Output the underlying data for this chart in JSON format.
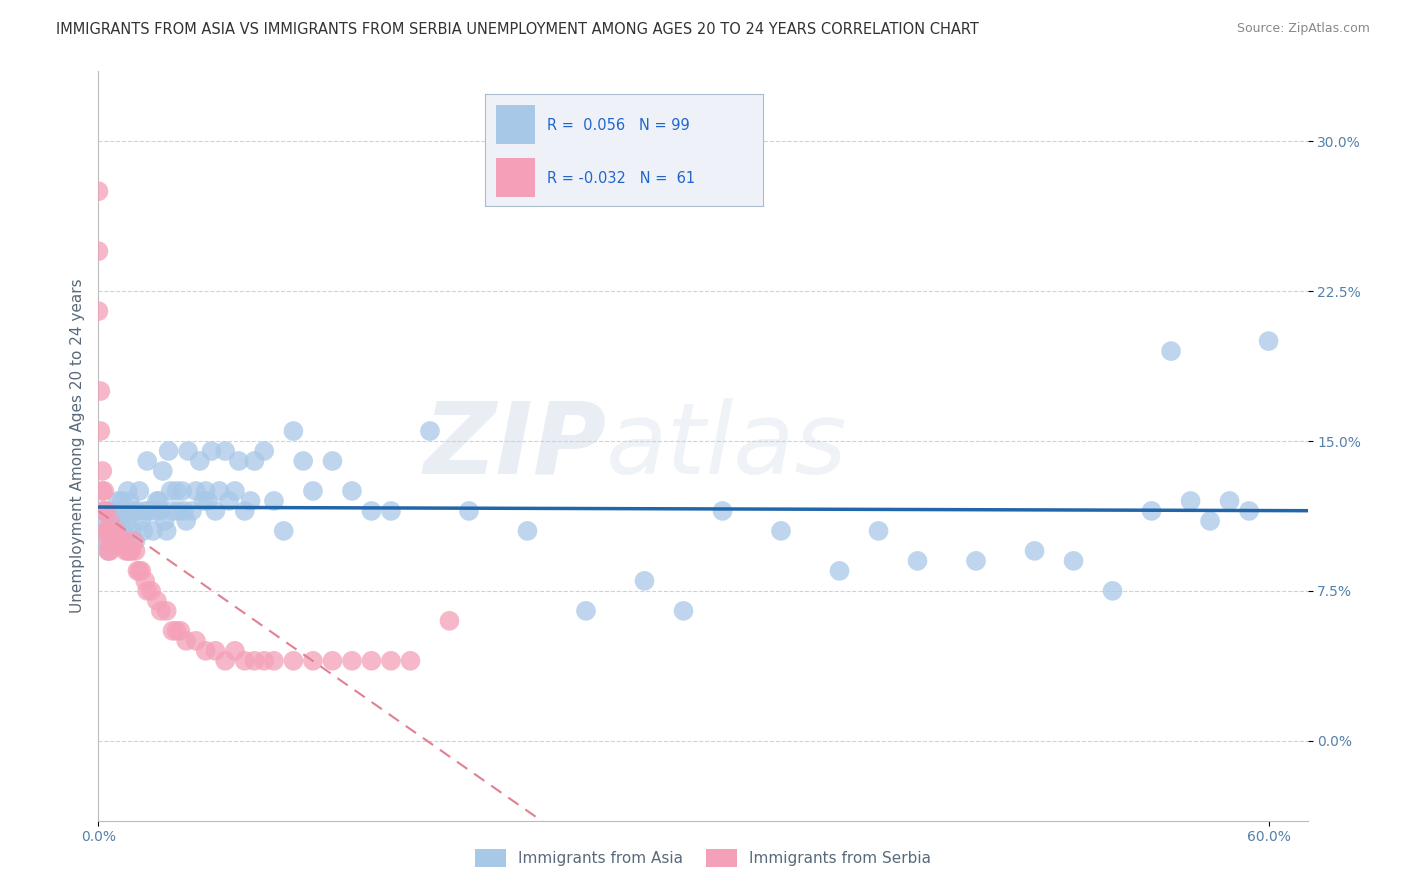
{
  "title": "IMMIGRANTS FROM ASIA VS IMMIGRANTS FROM SERBIA UNEMPLOYMENT AMONG AGES 20 TO 24 YEARS CORRELATION CHART",
  "source": "Source: ZipAtlas.com",
  "ylabel": "Unemployment Among Ages 20 to 24 years",
  "xlim": [
    0.0,
    0.62
  ],
  "ylim": [
    -0.04,
    0.335
  ],
  "ytick_vals": [
    0.0,
    0.075,
    0.15,
    0.225,
    0.3
  ],
  "ytick_labels": [
    "0.0%",
    "7.5%",
    "15.0%",
    "22.5%",
    "30.0%"
  ],
  "xtick_vals": [
    0.0,
    0.6
  ],
  "xtick_labels": [
    "0.0%",
    "60.0%"
  ],
  "asia_color": "#a8c8e8",
  "serbia_color": "#f4a0b8",
  "asia_line_color": "#2266aa",
  "serbia_line_color": "#e08090",
  "watermark_line1": "ZIP",
  "watermark_line2": "atlas",
  "title_fontsize": 10.5,
  "axis_label_fontsize": 11,
  "tick_fontsize": 10,
  "legend_fontsize": 11,
  "background_color": "#ffffff",
  "grid_color": "#c8d4e4",
  "asia_scatter_x": [
    0.002,
    0.003,
    0.004,
    0.005,
    0.005,
    0.006,
    0.007,
    0.007,
    0.008,
    0.008,
    0.009,
    0.009,
    0.01,
    0.01,
    0.01,
    0.011,
    0.011,
    0.012,
    0.012,
    0.013,
    0.014,
    0.015,
    0.015,
    0.016,
    0.017,
    0.018,
    0.019,
    0.02,
    0.021,
    0.022,
    0.023,
    0.024,
    0.025,
    0.026,
    0.028,
    0.029,
    0.03,
    0.031,
    0.032,
    0.033,
    0.034,
    0.035,
    0.036,
    0.037,
    0.038,
    0.04,
    0.041,
    0.043,
    0.044,
    0.045,
    0.046,
    0.048,
    0.05,
    0.052,
    0.054,
    0.055,
    0.056,
    0.058,
    0.06,
    0.062,
    0.065,
    0.067,
    0.07,
    0.072,
    0.075,
    0.078,
    0.08,
    0.085,
    0.09,
    0.095,
    0.1,
    0.105,
    0.11,
    0.12,
    0.13,
    0.14,
    0.15,
    0.17,
    0.19,
    0.22,
    0.25,
    0.28,
    0.3,
    0.32,
    0.35,
    0.38,
    0.4,
    0.42,
    0.45,
    0.48,
    0.5,
    0.52,
    0.54,
    0.55,
    0.56,
    0.57,
    0.58,
    0.59,
    0.6
  ],
  "asia_scatter_y": [
    0.115,
    0.11,
    0.1,
    0.105,
    0.095,
    0.105,
    0.11,
    0.1,
    0.1,
    0.115,
    0.1,
    0.105,
    0.12,
    0.105,
    0.115,
    0.11,
    0.105,
    0.12,
    0.11,
    0.105,
    0.115,
    0.11,
    0.125,
    0.12,
    0.105,
    0.115,
    0.1,
    0.115,
    0.125,
    0.11,
    0.105,
    0.115,
    0.14,
    0.115,
    0.105,
    0.115,
    0.12,
    0.12,
    0.115,
    0.135,
    0.11,
    0.105,
    0.145,
    0.125,
    0.115,
    0.125,
    0.115,
    0.125,
    0.115,
    0.11,
    0.145,
    0.115,
    0.125,
    0.14,
    0.12,
    0.125,
    0.12,
    0.145,
    0.115,
    0.125,
    0.145,
    0.12,
    0.125,
    0.14,
    0.115,
    0.12,
    0.14,
    0.145,
    0.12,
    0.105,
    0.155,
    0.14,
    0.125,
    0.14,
    0.125,
    0.115,
    0.115,
    0.155,
    0.115,
    0.105,
    0.065,
    0.08,
    0.065,
    0.115,
    0.105,
    0.085,
    0.105,
    0.09,
    0.09,
    0.095,
    0.09,
    0.075,
    0.115,
    0.195,
    0.12,
    0.11,
    0.12,
    0.115,
    0.2
  ],
  "serbia_scatter_x": [
    0.0,
    0.0,
    0.0,
    0.001,
    0.001,
    0.002,
    0.002,
    0.003,
    0.003,
    0.004,
    0.004,
    0.005,
    0.005,
    0.005,
    0.006,
    0.006,
    0.007,
    0.007,
    0.008,
    0.009,
    0.009,
    0.01,
    0.011,
    0.012,
    0.013,
    0.014,
    0.015,
    0.016,
    0.017,
    0.018,
    0.019,
    0.02,
    0.021,
    0.022,
    0.024,
    0.025,
    0.027,
    0.03,
    0.032,
    0.035,
    0.038,
    0.04,
    0.042,
    0.045,
    0.05,
    0.055,
    0.06,
    0.065,
    0.07,
    0.075,
    0.08,
    0.085,
    0.09,
    0.1,
    0.11,
    0.12,
    0.13,
    0.14,
    0.15,
    0.16,
    0.18
  ],
  "serbia_scatter_y": [
    0.275,
    0.245,
    0.215,
    0.175,
    0.155,
    0.135,
    0.125,
    0.125,
    0.115,
    0.115,
    0.105,
    0.105,
    0.1,
    0.095,
    0.095,
    0.11,
    0.105,
    0.1,
    0.105,
    0.105,
    0.1,
    0.1,
    0.1,
    0.1,
    0.1,
    0.095,
    0.095,
    0.095,
    0.095,
    0.1,
    0.095,
    0.085,
    0.085,
    0.085,
    0.08,
    0.075,
    0.075,
    0.07,
    0.065,
    0.065,
    0.055,
    0.055,
    0.055,
    0.05,
    0.05,
    0.045,
    0.045,
    0.04,
    0.045,
    0.04,
    0.04,
    0.04,
    0.04,
    0.04,
    0.04,
    0.04,
    0.04,
    0.04,
    0.04,
    0.04,
    0.06
  ]
}
